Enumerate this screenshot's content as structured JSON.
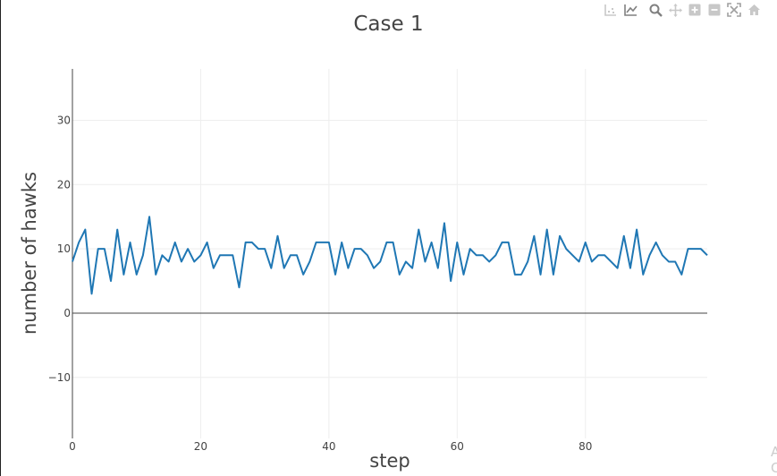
{
  "modebar": {
    "icons": [
      "compare-hover-icon",
      "spike-lines-icon",
      "zoom-icon",
      "pan-icon",
      "zoom-in-icon",
      "zoom-out-icon",
      "autoscale-icon",
      "reset-axes-icon"
    ]
  },
  "colors": {
    "series": "#1f77b4",
    "grid": "#eeeeee",
    "zeroline": "#444444",
    "text": "#444444",
    "modebar_icon": "#c8c8c8",
    "modebar_icon_active": "#808080"
  },
  "corner_text": "A\nC",
  "chart_data": {
    "type": "line",
    "title": "Case 1",
    "xlabel": "step",
    "ylabel": "number of hawks",
    "xlim": [
      0,
      99
    ],
    "ylim": [
      -19.5,
      38
    ],
    "x_ticks": [
      0,
      20,
      40,
      60,
      80
    ],
    "y_ticks": [
      -10,
      0,
      10,
      20,
      30
    ],
    "grid": true,
    "legend": "none",
    "series": [
      {
        "values": [
          8,
          11,
          13,
          3,
          10,
          10,
          5,
          13,
          6,
          11,
          6,
          9,
          15,
          6,
          9,
          8,
          11,
          8,
          10,
          8,
          9,
          11,
          7,
          9,
          9,
          9,
          4,
          11,
          11,
          10,
          10,
          7,
          12,
          7,
          9,
          9,
          6,
          8,
          11,
          11,
          11,
          6,
          11,
          7,
          10,
          10,
          9,
          7,
          8,
          11,
          11,
          6,
          8,
          7,
          13,
          8,
          11,
          7,
          14,
          5,
          11,
          6,
          10,
          9,
          9,
          8,
          9,
          11,
          11,
          6,
          6,
          8,
          12,
          6,
          13,
          6,
          12,
          10,
          9,
          8,
          11,
          8,
          9,
          9,
          8,
          7,
          12,
          7,
          13,
          6,
          9,
          11,
          9,
          8,
          8,
          6,
          10,
          10,
          10,
          9
        ]
      }
    ]
  }
}
